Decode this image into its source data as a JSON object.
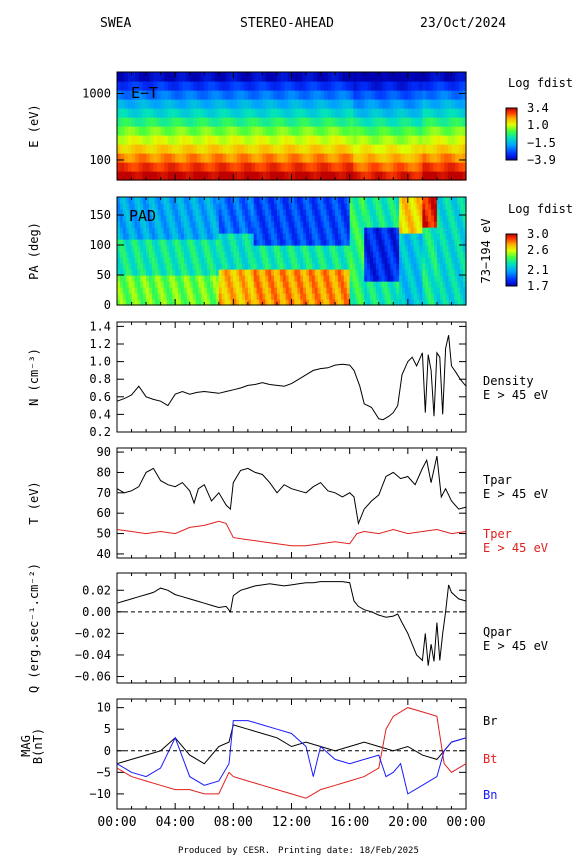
{
  "header": {
    "instrument": "SWEA",
    "spacecraft": "STEREO-AHEAD",
    "date": "23/Oct/2024"
  },
  "footer": {
    "produced_by": "Produced by CESR.",
    "printing_date": "Printing date: 18/Feb/2025"
  },
  "time_axis": {
    "ticks": [
      "00:00",
      "04:00",
      "08:00",
      "12:00",
      "16:00",
      "20:00",
      "00:00"
    ],
    "hours": [
      0,
      4,
      8,
      12,
      16,
      20,
      24
    ]
  },
  "colors": {
    "black": "#000000",
    "red": "#e02020",
    "blue": "#1a1aff"
  },
  "chart_data": [
    {
      "id": "et",
      "type": "heatmap",
      "tag": "E−T",
      "ylabel": "E (eV)",
      "yscale": "log",
      "ylim": [
        50,
        2100
      ],
      "yticks": [
        100,
        1000
      ],
      "ytick_labels": [
        "100",
        "1000"
      ],
      "colorbar": {
        "title": "Log fdist",
        "ticks": [
          3.4,
          1.0,
          -1.5,
          -3.9
        ],
        "tick_labels": [
          "3.4",
          "1.0",
          "−1.5",
          "−3.9"
        ]
      },
      "description_rows_low_to_high_energy": [
        3.4,
        2.8,
        2.2,
        1.6,
        1.0,
        0.4,
        -0.3,
        -1.0,
        -1.6,
        -2.3,
        -3.0,
        -3.7
      ]
    },
    {
      "id": "pad",
      "type": "heatmap",
      "tag": "PAD",
      "ylabel": "PA (deg)",
      "ylim": [
        0,
        180
      ],
      "yticks": [
        0,
        50,
        100,
        150
      ],
      "ytick_labels": [
        "0",
        "50",
        "100",
        "150"
      ],
      "right_label": "73−194 eV",
      "colorbar": {
        "title": "Log fdist",
        "ticks": [
          3.0,
          2.6,
          2.1,
          1.7
        ],
        "tick_labels": [
          "3.0",
          "2.6",
          "2.1",
          "1.7"
        ]
      }
    },
    {
      "id": "density",
      "type": "line",
      "ylabel": "N (cm⁻³)",
      "ylim": [
        0.2,
        1.45
      ],
      "yticks": [
        0.2,
        0.4,
        0.6,
        0.8,
        1.0,
        1.2,
        1.4
      ],
      "ytick_labels": [
        "0.2",
        "0.4",
        "0.6",
        "0.8",
        "1.0",
        "1.2",
        "1.4"
      ],
      "series": [
        {
          "name": "Density",
          "sublabel": "E > 45 eV",
          "x": [
            0,
            0.5,
            1,
            1.5,
            2,
            2.5,
            3,
            3.5,
            4,
            4.5,
            5,
            5.5,
            6,
            6.5,
            7,
            7.5,
            8,
            8.5,
            9,
            9.5,
            10,
            10.5,
            11,
            11.5,
            12,
            12.5,
            13,
            13.5,
            14,
            14.5,
            15,
            15.5,
            16,
            16.3,
            16.7,
            17,
            17.5,
            18,
            18.3,
            18.7,
            19,
            19.3,
            19.6,
            20,
            20.3,
            20.6,
            21,
            21.2,
            21.4,
            21.6,
            21.8,
            22,
            22.2,
            22.4,
            22.6,
            22.8,
            23,
            23.3,
            23.6,
            24
          ],
          "y": [
            0.55,
            0.58,
            0.62,
            0.72,
            0.6,
            0.57,
            0.55,
            0.5,
            0.63,
            0.66,
            0.63,
            0.65,
            0.66,
            0.65,
            0.64,
            0.66,
            0.68,
            0.7,
            0.73,
            0.74,
            0.76,
            0.74,
            0.73,
            0.72,
            0.75,
            0.8,
            0.85,
            0.9,
            0.92,
            0.93,
            0.96,
            0.97,
            0.96,
            0.9,
            0.72,
            0.52,
            0.48,
            0.35,
            0.34,
            0.38,
            0.42,
            0.5,
            0.85,
            1.0,
            1.05,
            0.95,
            1.1,
            0.42,
            1.08,
            0.9,
            0.38,
            1.1,
            1.05,
            0.4,
            1.15,
            1.3,
            0.95,
            0.88,
            0.8,
            0.72
          ]
        }
      ]
    },
    {
      "id": "temperature",
      "type": "line",
      "ylabel": "T (eV)",
      "ylim": [
        38,
        92
      ],
      "yticks": [
        40,
        50,
        60,
        70,
        80,
        90
      ],
      "ytick_labels": [
        "40",
        "50",
        "60",
        "70",
        "80",
        "90"
      ],
      "series": [
        {
          "name": "Tpar",
          "sublabel": "E > 45 eV",
          "color": "#000000",
          "x": [
            0,
            0.5,
            1,
            1.5,
            2,
            2.5,
            3,
            3.5,
            4,
            4.5,
            5,
            5.3,
            5.6,
            6,
            6.5,
            7,
            7.5,
            7.8,
            8,
            8.5,
            9,
            9.5,
            10,
            10.5,
            11,
            11.5,
            12,
            12.5,
            13,
            13.5,
            14,
            14.5,
            15,
            15.5,
            16,
            16.3,
            16.6,
            17,
            17.5,
            18,
            18.5,
            19,
            19.5,
            20,
            20.5,
            21,
            21.3,
            21.6,
            22,
            22.3,
            22.6,
            23,
            23.5,
            24
          ],
          "y": [
            72,
            70,
            71,
            73,
            80,
            82,
            76,
            74,
            73,
            75,
            71,
            65,
            72,
            74,
            66,
            70,
            64,
            62,
            75,
            81,
            82,
            80,
            79,
            75,
            70,
            74,
            72,
            71,
            70,
            73,
            75,
            71,
            70,
            68,
            70,
            68,
            55,
            62,
            66,
            69,
            78,
            80,
            77,
            78,
            74,
            82,
            86,
            75,
            88,
            68,
            72,
            66,
            62,
            63
          ]
        },
        {
          "name": "Tper",
          "sublabel": "E > 45 eV",
          "color": "#e02020",
          "x": [
            0,
            1,
            2,
            3,
            4,
            5,
            6,
            6.5,
            7,
            7.5,
            8,
            9,
            10,
            11,
            12,
            13,
            14,
            15,
            16,
            16.5,
            17,
            18,
            19,
            20,
            21,
            22,
            23,
            24
          ],
          "y": [
            52,
            51,
            50,
            51,
            50,
            53,
            54,
            55,
            56,
            55,
            48,
            47,
            46,
            45,
            44,
            44,
            45,
            46,
            45,
            50,
            51,
            50,
            52,
            50,
            51,
            52,
            50,
            51
          ]
        }
      ]
    },
    {
      "id": "heatflux",
      "type": "line",
      "ylabel": "Q (erg.sec⁻¹.cm⁻²)",
      "ylim": [
        -0.066,
        0.036
      ],
      "yticks": [
        -0.06,
        -0.04,
        -0.02,
        0.0,
        0.02
      ],
      "ytick_labels": [
        "−0.06",
        "−0.04",
        "−0.02",
        "0.00",
        "0.02"
      ],
      "series": [
        {
          "name": "Qpar",
          "sublabel": "E > 45 eV",
          "x": [
            0,
            0.5,
            1,
            1.5,
            2,
            2.5,
            3,
            3.5,
            4,
            4.5,
            5,
            5.5,
            6,
            6.5,
            7,
            7.5,
            7.8,
            8,
            8.5,
            9,
            9.5,
            10,
            10.5,
            11,
            11.5,
            12,
            12.5,
            13,
            13.5,
            14,
            14.5,
            15,
            15.5,
            16,
            16.3,
            16.6,
            17,
            17.5,
            18,
            18.5,
            19,
            19.3,
            19.6,
            20,
            20.3,
            20.6,
            21,
            21.2,
            21.4,
            21.6,
            21.8,
            22,
            22.2,
            22.4,
            22.6,
            22.8,
            23,
            23.5,
            24
          ],
          "y": [
            0.008,
            0.01,
            0.012,
            0.014,
            0.016,
            0.018,
            0.022,
            0.02,
            0.016,
            0.014,
            0.012,
            0.01,
            0.008,
            0.006,
            0.004,
            0.005,
            0.0,
            0.015,
            0.02,
            0.022,
            0.024,
            0.025,
            0.026,
            0.025,
            0.024,
            0.025,
            0.026,
            0.027,
            0.027,
            0.028,
            0.028,
            0.028,
            0.028,
            0.027,
            0.01,
            0.005,
            0.002,
            0.0,
            -0.003,
            -0.005,
            -0.004,
            -0.002,
            -0.01,
            -0.02,
            -0.03,
            -0.04,
            -0.045,
            -0.02,
            -0.05,
            -0.03,
            -0.046,
            -0.01,
            -0.045,
            -0.02,
            0.0,
            0.025,
            0.018,
            0.012,
            0.01
          ]
        }
      ]
    },
    {
      "id": "mag",
      "type": "line",
      "ylabel": "MAG B(nT)",
      "ylim": [
        -13.5,
        12
      ],
      "yticks": [
        -10,
        -5,
        0,
        5,
        10
      ],
      "ytick_labels": [
        "−10",
        "−5",
        "0",
        "5",
        "10"
      ],
      "series": [
        {
          "name": "Br",
          "color": "#000000",
          "x": [
            0,
            1,
            2,
            3,
            4,
            5,
            6,
            7,
            7.7,
            8,
            9,
            10,
            11,
            12,
            13,
            14,
            15,
            16,
            17,
            18,
            19,
            20,
            21,
            22,
            23,
            24
          ],
          "y": [
            -3,
            -2,
            -1,
            0,
            3,
            -1,
            -3,
            1,
            2,
            6,
            5,
            4,
            3,
            1,
            2,
            1,
            0,
            1,
            2,
            1,
            0,
            1,
            -1,
            -2,
            2,
            3
          ]
        },
        {
          "name": "Bt",
          "color": "#e02020",
          "x": [
            0,
            1,
            2,
            3,
            4,
            5,
            6,
            7,
            7.7,
            8,
            9,
            10,
            11,
            12,
            13,
            13.5,
            14,
            15,
            16,
            17,
            18,
            18.5,
            19,
            19.5,
            20,
            21,
            22,
            22.5,
            23,
            24
          ],
          "y": [
            -4,
            -6,
            -7,
            -8,
            -9,
            -9,
            -10,
            -10,
            -5,
            -6,
            -7,
            -8,
            -9,
            -10,
            -11,
            -10,
            -9,
            -8,
            -7,
            -6,
            -4,
            5,
            8,
            9,
            10,
            9,
            8,
            -3,
            -5,
            -3
          ]
        },
        {
          "name": "Bn",
          "color": "#1a1aff",
          "x": [
            0,
            1,
            2,
            3,
            4,
            5,
            6,
            7,
            7.7,
            8,
            9,
            10,
            11,
            12,
            13,
            13.5,
            14,
            15,
            16,
            17,
            18,
            18.5,
            19,
            19.5,
            20,
            21,
            22,
            22.5,
            23,
            24
          ],
          "y": [
            -3,
            -5,
            -6,
            -4,
            3,
            -6,
            -8,
            -7,
            -3,
            7,
            7,
            6,
            5,
            4,
            1,
            -6,
            1,
            -2,
            -3,
            -2,
            -1,
            -6,
            -5,
            -3,
            -10,
            -8,
            -6,
            0,
            2,
            3
          ]
        }
      ]
    }
  ]
}
